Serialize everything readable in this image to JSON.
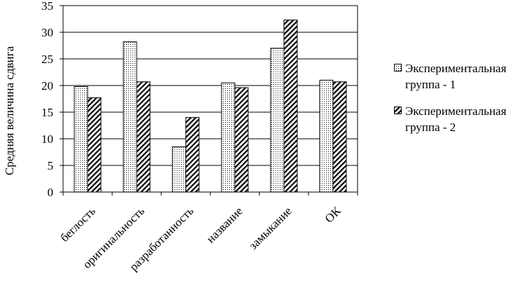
{
  "chart_data": {
    "type": "bar",
    "title": "",
    "xlabel": "",
    "ylabel": "Средняя величина сдвига",
    "ylim": [
      0,
      35
    ],
    "yticks": [
      0,
      5,
      10,
      15,
      20,
      25,
      30,
      35
    ],
    "categories": [
      "беглость",
      "оригинальность",
      "разработанность",
      "название",
      "замыкание",
      "ОК"
    ],
    "series": [
      {
        "name": "Экспериментальная группа - 1",
        "pattern": "dots",
        "values": [
          19.8,
          28.2,
          8.5,
          20.5,
          27.0,
          21.0
        ]
      },
      {
        "name": "Экспериментальная группа - 2",
        "pattern": "diagonal",
        "values": [
          17.7,
          20.7,
          14.0,
          19.6,
          32.3,
          20.7
        ]
      }
    ],
    "grid": true,
    "legend_position": "right"
  }
}
